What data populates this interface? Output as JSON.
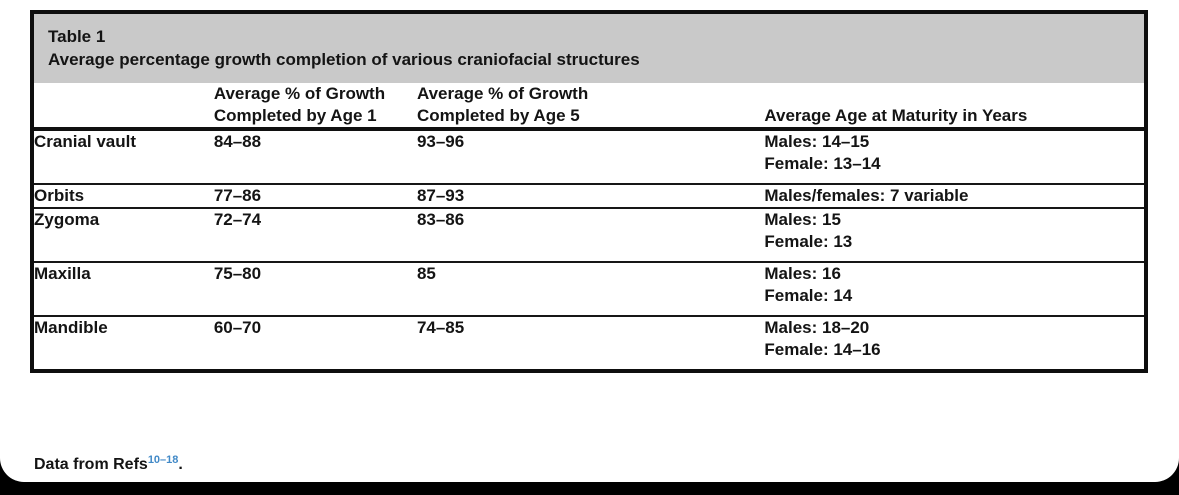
{
  "figure": {
    "label": "Table 1",
    "caption": "Average percentage growth completion of various craniofacial structures",
    "band_color": "#c9c9c9",
    "headers": {
      "age1_line1": "Average % of Growth",
      "age1_line2": "Completed by Age 1",
      "age5_line1": "Average % of Growth",
      "age5_line2": "Completed by Age 5",
      "maturity": "Average Age at Maturity in Years"
    },
    "rows": [
      {
        "structure": "Cranial vault",
        "age1": "84–88",
        "age5": "93–96",
        "maturity_line1": "Males: 14–15",
        "maturity_line2": "Female: 13–14"
      },
      {
        "structure": "Orbits",
        "age1": "77–86",
        "age5": "87–93",
        "maturity_line1": "Males/females: 7 variable",
        "maturity_line2": ""
      },
      {
        "structure": "Zygoma",
        "age1": "72–74",
        "age5": "83–86",
        "maturity_line1": "Males: 15",
        "maturity_line2": "Female: 13"
      },
      {
        "structure": "Maxilla",
        "age1": "75–80",
        "age5": "85",
        "maturity_line1": "Males: 16",
        "maturity_line2": "Female: 14"
      },
      {
        "structure": "Mandible",
        "age1": "60–70",
        "age5": "74–85",
        "maturity_line1": "Males: 18–20",
        "maturity_line2": "Female: 14–16"
      }
    ]
  },
  "footnote": {
    "text": "Data from Refs",
    "refs": "10–18",
    "period": ".",
    "refs_color": "#4189c7"
  }
}
